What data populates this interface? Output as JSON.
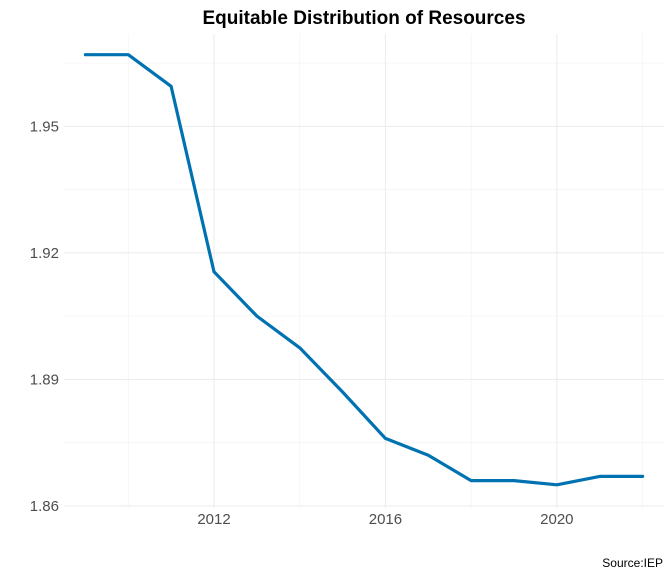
{
  "chart_data": {
    "type": "line",
    "title": "Equitable Distribution of Resources",
    "xlabel": "",
    "ylabel": "",
    "caption": "Source:IEP",
    "xlim": [
      2008.5,
      2022.5
    ],
    "ylim": [
      1.8595,
      1.9719
    ],
    "x_ticks": [
      2012,
      2016,
      2020
    ],
    "x_minor_ticks": [
      2010,
      2014,
      2018,
      2022
    ],
    "y_ticks": [
      1.86,
      1.89,
      1.92,
      1.95
    ],
    "y_tick_labels": [
      "1.86",
      "1.89",
      "1.92",
      "1.95"
    ],
    "y_minor_ticks": [
      1.875,
      1.905,
      1.935,
      1.965
    ],
    "grid": true,
    "legend": "none",
    "series": [
      {
        "color": "#0072B2",
        "x": [
          2009,
          2010,
          2011,
          2012,
          2013,
          2014,
          2015,
          2016,
          2017,
          2018,
          2019,
          2020,
          2021,
          2022
        ],
        "y": [
          1.967,
          1.967,
          1.9595,
          1.9155,
          1.905,
          1.8975,
          1.887,
          1.876,
          1.872,
          1.866,
          1.866,
          1.865,
          1.867,
          1.867
        ]
      }
    ]
  }
}
